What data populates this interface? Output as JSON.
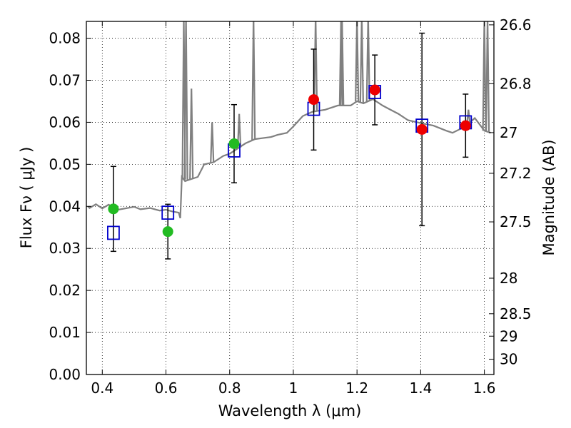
{
  "chart_data": {
    "type": "scatter",
    "xlabel": "Wavelength  λ (μm)",
    "ylabel": "Flux  Fν  ( μJy )",
    "ylabel_right": "Magnitude (AB)",
    "xlim": [
      0.35,
      1.63
    ],
    "ylim": [
      0,
      0.084
    ],
    "x_ticks": [
      0.4,
      0.6,
      0.8,
      1.0,
      1.2,
      1.4,
      1.6
    ],
    "x_tick_labels": [
      "0.4",
      "0.6",
      "0.8",
      "1",
      "1.2",
      "1.4",
      "1.6"
    ],
    "y_ticks": [
      0,
      0.01,
      0.02,
      0.03,
      0.04,
      0.05,
      0.06,
      0.07,
      0.08
    ],
    "y_tick_labels": [
      "0.00",
      "0.01",
      "0.02",
      "0.03",
      "0.04",
      "0.05",
      "0.06",
      "0.07",
      "0.08"
    ],
    "mag_ticks": [
      26.6,
      26.8,
      27,
      27.2,
      27.5,
      28,
      28.5,
      29,
      30
    ],
    "mag_tick_labels": [
      "26.6",
      "26.8",
      "27",
      "27.2",
      "27.5",
      "28",
      "28.5",
      "29",
      "30"
    ],
    "grid": true,
    "colors": {
      "spectrum": "#808080",
      "optical": "#22bb22",
      "nir": "#ee0000",
      "model": "#0000cc",
      "errorbar": "#000000"
    },
    "series": [
      {
        "kind": "observed-optical",
        "x": [
          0.435,
          0.606,
          0.814
        ],
        "y": [
          0.0394,
          0.034,
          0.0549
        ],
        "yerr": [
          0.0101,
          0.0065,
          0.0093
        ]
      },
      {
        "kind": "observed-nir",
        "x": [
          1.064,
          1.256,
          1.404,
          1.541
        ],
        "y": [
          0.0654,
          0.0677,
          0.0583,
          0.0592
        ],
        "yerr": [
          0.012,
          0.0083,
          0.0229,
          0.0075
        ]
      },
      {
        "kind": "model-photometry",
        "x": [
          0.435,
          0.606,
          0.814,
          1.064,
          1.256,
          1.404,
          1.541
        ],
        "y": [
          0.0337,
          0.0385,
          0.0533,
          0.0632,
          0.0672,
          0.0592,
          0.06
        ]
      },
      {
        "kind": "model-spectrum",
        "x": [
          0.355,
          0.36,
          0.38,
          0.4,
          0.42,
          0.45,
          0.48,
          0.5,
          0.52,
          0.55,
          0.58,
          0.6,
          0.62,
          0.64,
          0.645,
          0.65,
          0.66,
          0.68,
          0.7,
          0.72,
          0.75,
          0.78,
          0.8,
          0.85,
          0.88,
          0.9,
          0.93,
          0.95,
          0.98,
          1.0,
          1.03,
          1.06,
          1.1,
          1.14,
          1.18,
          1.2,
          1.22,
          1.25,
          1.28,
          1.3,
          1.33,
          1.36,
          1.4,
          1.44,
          1.48,
          1.5,
          1.54,
          1.57,
          1.6,
          1.62
        ],
        "y": [
          0.04,
          0.0396,
          0.0405,
          0.0395,
          0.0404,
          0.0392,
          0.0396,
          0.0399,
          0.0393,
          0.0396,
          0.039,
          0.0392,
          0.0388,
          0.0385,
          0.0372,
          0.047,
          0.046,
          0.0465,
          0.047,
          0.05,
          0.0505,
          0.052,
          0.0525,
          0.055,
          0.056,
          0.0562,
          0.0565,
          0.057,
          0.0575,
          0.059,
          0.0615,
          0.0625,
          0.063,
          0.064,
          0.064,
          0.065,
          0.0645,
          0.0655,
          0.064,
          0.0632,
          0.062,
          0.0605,
          0.0598,
          0.0592,
          0.058,
          0.0575,
          0.059,
          0.061,
          0.058,
          0.0575
        ]
      },
      {
        "kind": "emission-lines",
        "x": [
          0.656,
          0.663,
          0.68,
          0.72,
          0.745,
          0.83,
          0.875,
          1.07,
          1.15,
          1.153,
          1.2,
          1.215,
          1.235,
          1.55,
          1.6,
          1.61
        ],
        "y": [
          0.085,
          0.085,
          0.068,
          0.05,
          0.06,
          0.062,
          0.085,
          0.085,
          0.085,
          0.085,
          0.085,
          0.085,
          0.085,
          0.063,
          0.085,
          0.085
        ]
      }
    ]
  }
}
